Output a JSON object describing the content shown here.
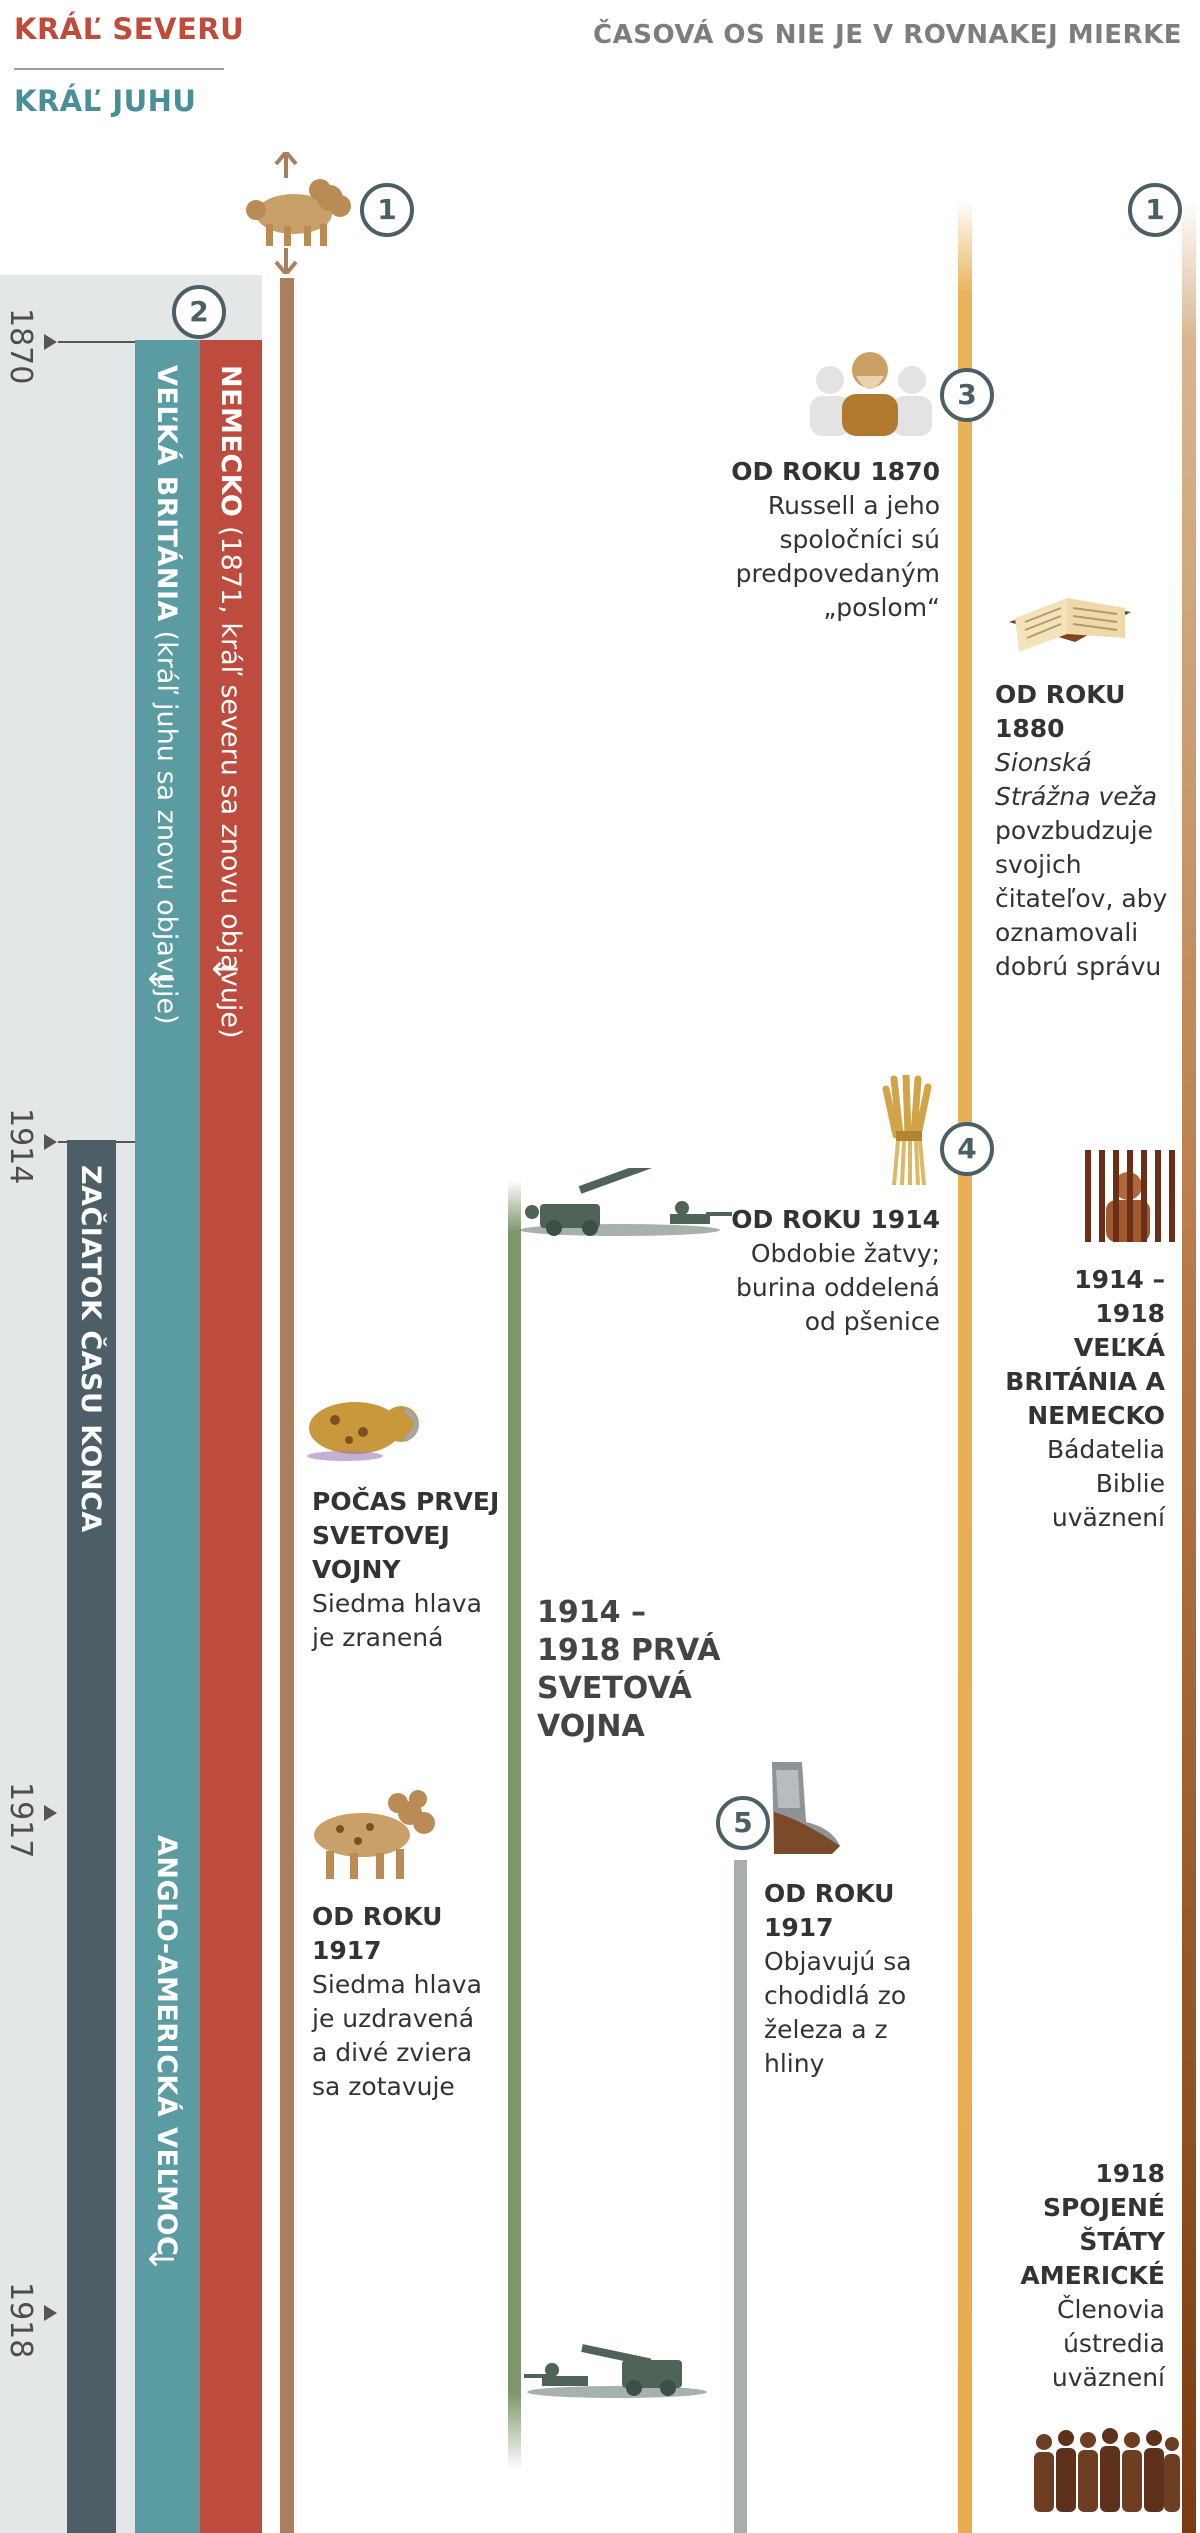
{
  "legend": {
    "king_north": "KRÁĽ SEVERU",
    "king_south": "KRÁĽ JUHU",
    "scale_note": "ČASOVÁ OS NIE JE V ROVNAKEJ MIERKE"
  },
  "years": [
    "1870",
    "1914",
    "1917",
    "1918"
  ],
  "bars": {
    "germany_title": "NEMECKO",
    "germany_note": "(1871, kráľ severu sa znovu objavuje)",
    "britain_title": "VEĽKÁ BRITÁNIA",
    "britain_note": "(kráľ juhu sa znovu objavuje)",
    "anglo_american": "ANGLO-AMERICKÁ VEĽMOC",
    "time_of_end": "ZAČIATOK ČASU KONCA",
    "arrow": "↓"
  },
  "badges": [
    "1",
    "2",
    "3",
    "4",
    "5"
  ],
  "events": {
    "beast_wounded": {
      "title": "POČAS PRVEJ SVETOVEJ VOJNY",
      "text": "Siedma hlava je zranená"
    },
    "beast_healed": {
      "title": "OD ROKU 1917",
      "text": "Siedma hlava je uzdravená a divé zviera sa zotavuje"
    },
    "world_war": {
      "title": "1914 – 1918 PRVÁ SVETOVÁ VOJNA"
    },
    "feet": {
      "title": "OD ROKU 1917",
      "text": "Objavujú sa chodidlá zo železa a z hliny"
    },
    "russell": {
      "title": "OD ROKU 1870",
      "text": "Russell a jeho spoločníci sú predpovedaným „poslom“"
    },
    "watchtower": {
      "title": "OD ROKU 1880",
      "italic": "Sionská Strážna veža",
      "text": "povzbudzuje svojich čitateľov, aby oznamovali dobrú správu"
    },
    "harvest": {
      "title": "OD ROKU 1914",
      "text": "Obdobie žatvy; burina oddelená od pšenice"
    },
    "imprisoned_1914": {
      "title": "1914 – 1918 VEĽKÁ BRITÁNIA A NEMECKO",
      "text": "Bádatelia Biblie uväznení"
    },
    "imprisoned_1918": {
      "title": "1918 SPOJENÉ ŠTÁTY AMERICKÉ",
      "text": "Členovia ústredia uväznení"
    }
  },
  "colors": {
    "king_north": "#bd4b3e",
    "king_south": "#5b9ba2",
    "time_of_end": "#4d5f66",
    "beast_line": "#a97f5e",
    "war_line": "#7e966c",
    "gold_line": "#e9b35a"
  },
  "icons": [
    "beast-icon",
    "wounded-beast-icon",
    "soldiers-icon",
    "feet-icon",
    "russell-icon",
    "bible-icon",
    "wheat-icon",
    "prisoner-icon",
    "group-icon"
  ]
}
